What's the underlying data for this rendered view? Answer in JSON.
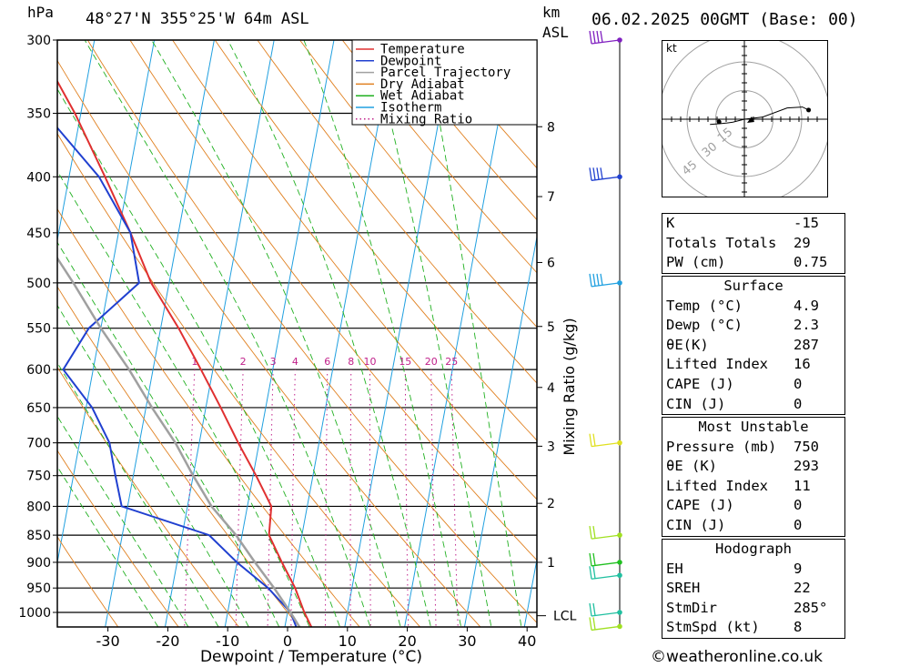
{
  "header": {
    "unit_hpa": "hPa",
    "location": "48°27'N 355°25'W 64m ASL",
    "unit_km": "km",
    "unit_asl": "ASL",
    "valid": "06.02.2025 00GMT (Base: 00)"
  },
  "chart_data": {
    "type": "line",
    "xlabel": "Dewpoint / Temperature (°C)",
    "ylabel": "hPa",
    "right_label": "Mixing Ratio (g/kg)",
    "x_ticks": [
      -30,
      -20,
      -10,
      0,
      10,
      20,
      30,
      40
    ],
    "pressure_levels": [
      300,
      350,
      400,
      450,
      500,
      550,
      600,
      650,
      700,
      750,
      800,
      850,
      900,
      950,
      1000
    ],
    "xlim": [
      -40,
      40
    ],
    "ylim_hpa": [
      1050,
      300
    ],
    "skew": "skew-T log-p",
    "legend_position": "top-right",
    "legend": [
      {
        "name": "Temperature",
        "color": "#e03030",
        "style": "solid"
      },
      {
        "name": "Dewpoint",
        "color": "#2040d0",
        "style": "solid"
      },
      {
        "name": "Parcel Trajectory",
        "color": "#a0a0a0",
        "style": "solid"
      },
      {
        "name": "Dry Adiabat",
        "color": "#e08020",
        "style": "solid"
      },
      {
        "name": "Wet Adiabat",
        "color": "#20b020",
        "style": "solid"
      },
      {
        "name": "Isotherm",
        "color": "#20a0e0",
        "style": "solid"
      },
      {
        "name": "Mixing Ratio",
        "color": "#c0208a",
        "style": "dotted"
      }
    ],
    "series": [
      {
        "name": "Temperature",
        "color": "#e03030",
        "points": [
          [
            1040,
            4.9
          ],
          [
            1000,
            2.8
          ],
          [
            950,
            0.5
          ],
          [
            900,
            -2.5
          ],
          [
            850,
            -5.5
          ],
          [
            800,
            -6.0
          ],
          [
            750,
            -9.5
          ],
          [
            700,
            -13.5
          ],
          [
            650,
            -17.5
          ],
          [
            600,
            -22
          ],
          [
            550,
            -27
          ],
          [
            500,
            -33
          ],
          [
            450,
            -38
          ],
          [
            400,
            -44
          ],
          [
            350,
            -51
          ],
          [
            300,
            -60
          ]
        ]
      },
      {
        "name": "Dewpoint",
        "color": "#2040d0",
        "points": [
          [
            1040,
            2.3
          ],
          [
            1000,
            0.5
          ],
          [
            950,
            -4
          ],
          [
            900,
            -10
          ],
          [
            850,
            -15.5
          ],
          [
            800,
            -31
          ],
          [
            750,
            -33
          ],
          [
            700,
            -35
          ],
          [
            650,
            -39
          ],
          [
            600,
            -45
          ],
          [
            550,
            -42
          ],
          [
            500,
            -35
          ],
          [
            450,
            -38
          ],
          [
            400,
            -45
          ],
          [
            350,
            -56
          ],
          [
            300,
            -66
          ]
        ]
      },
      {
        "name": "Parcel Trajectory",
        "color": "#a0a0a0",
        "points": [
          [
            1040,
            3.0
          ],
          [
            1000,
            0.5
          ],
          [
            950,
            -3
          ],
          [
            900,
            -7
          ],
          [
            850,
            -11
          ],
          [
            800,
            -16
          ],
          [
            750,
            -20
          ],
          [
            700,
            -24
          ],
          [
            650,
            -29
          ],
          [
            600,
            -34
          ],
          [
            550,
            -40
          ],
          [
            500,
            -46
          ],
          [
            450,
            -53
          ],
          [
            400,
            -61
          ],
          [
            350,
            -70
          ],
          [
            300,
            -80
          ]
        ]
      }
    ],
    "mixing_ratio_labels": [
      "1",
      "2",
      "3",
      "4",
      "6",
      "8",
      "10",
      "15",
      "20",
      "25"
    ],
    "km_ticks": [
      {
        "km": "1",
        "hpa": 900
      },
      {
        "km": "2",
        "hpa": 795
      },
      {
        "km": "3",
        "hpa": 705
      },
      {
        "km": "4",
        "hpa": 623
      },
      {
        "km": "5",
        "hpa": 548
      },
      {
        "km": "6",
        "hpa": 479
      },
      {
        "km": "7",
        "hpa": 417
      },
      {
        "km": "8",
        "hpa": 360
      }
    ],
    "lcl_label": "LCL",
    "lcl_hpa": 1007,
    "wind_barbs": [
      {
        "hpa": 300,
        "color": "#8020c0",
        "speed_kt": 40
      },
      {
        "hpa": 400,
        "color": "#2040d0",
        "speed_kt": 35
      },
      {
        "hpa": 500,
        "color": "#20a0e0",
        "speed_kt": 35
      },
      {
        "hpa": 700,
        "color": "#e0e020",
        "speed_kt": 15
      },
      {
        "hpa": 850,
        "color": "#a0e020",
        "speed_kt": 15
      },
      {
        "hpa": 900,
        "color": "#20c020",
        "speed_kt": 15
      },
      {
        "hpa": 925,
        "color": "#20c0a0",
        "speed_kt": 15
      },
      {
        "hpa": 1000,
        "color": "#20c0a0",
        "speed_kt": 15
      },
      {
        "hpa": 1030,
        "color": "#a0e020",
        "speed_kt": 15
      }
    ]
  },
  "hodograph": {
    "unit": "kt",
    "ring_labels": [
      "15",
      "30",
      "45"
    ],
    "trace": [
      [
        0,
        0
      ],
      [
        -2,
        -0.5
      ],
      [
        -4,
        -1
      ],
      [
        -6,
        -1.3
      ],
      [
        -8,
        -1.5
      ],
      [
        -12,
        -1.8
      ]
    ],
    "trace_upper": [
      [
        0,
        0
      ],
      [
        6,
        0.7
      ],
      [
        14,
        3.7
      ],
      [
        19,
        4
      ],
      [
        21,
        3
      ]
    ]
  },
  "indices": {
    "rows": [
      {
        "label": "K",
        "value": "-15"
      },
      {
        "label": "Totals Totals",
        "value": "29"
      },
      {
        "label": "PW (cm)",
        "value": "0.75"
      }
    ],
    "surface_title": "Surface",
    "surface": [
      {
        "label": "Temp (°C)",
        "value": "4.9"
      },
      {
        "label": "Dewp (°C)",
        "value": "2.3"
      },
      {
        "label": "θE(K)",
        "value": "287"
      },
      {
        "label": "Lifted Index",
        "value": "16"
      },
      {
        "label": "CAPE (J)",
        "value": "0"
      },
      {
        "label": "CIN (J)",
        "value": "0"
      }
    ],
    "mu_title": "Most Unstable",
    "most_unstable": [
      {
        "label": "Pressure (mb)",
        "value": "750"
      },
      {
        "label": "θE (K)",
        "value": "293"
      },
      {
        "label": "Lifted Index",
        "value": "11"
      },
      {
        "label": "CAPE (J)",
        "value": "0"
      },
      {
        "label": "CIN (J)",
        "value": "0"
      }
    ],
    "hodo_title": "Hodograph",
    "hodo": [
      {
        "label": "EH",
        "value": "9"
      },
      {
        "label": "SREH",
        "value": "22"
      },
      {
        "label": "StmDir",
        "value": "285°"
      },
      {
        "label": "StmSpd (kt)",
        "value": "8"
      }
    ]
  },
  "credit": "©weatheronline.co.uk"
}
